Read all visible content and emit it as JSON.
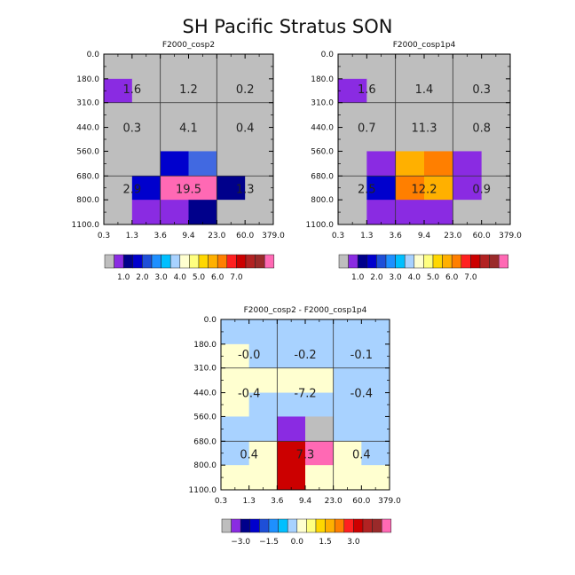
{
  "figure": {
    "title": "SH Pacific Stratus SON"
  },
  "chart_data": [
    {
      "type": "heatmap",
      "title": "F2000_cosp2",
      "x_tick_labels": [
        "0.3",
        "1.3",
        "3.6",
        "9.4",
        "23.0",
        "60.0",
        "379.0"
      ],
      "y_tick_labels": [
        "0.0",
        "180.0",
        "310.0",
        "440.0",
        "560.0",
        "680.0",
        "800.0",
        "1100.0"
      ],
      "cells": [
        [
          "gray",
          "gray",
          "gray",
          "gray",
          "gray",
          "gray"
        ],
        [
          "purple",
          "gray",
          "gray",
          "gray",
          "gray",
          "gray"
        ],
        [
          "gray",
          "gray",
          "gray",
          "gray",
          "gray",
          "gray"
        ],
        [
          "gray",
          "gray",
          "gray",
          "gray",
          "gray",
          "gray"
        ],
        [
          "gray",
          "gray",
          "blue3",
          "blue5",
          "gray",
          "gray"
        ],
        [
          "gray",
          "blue3",
          "pink",
          "pink",
          "navy",
          "gray"
        ],
        [
          "gray",
          "purple",
          "purple",
          "navy",
          "gray",
          "gray"
        ]
      ],
      "labels": [
        [
          "1.6",
          "1.2",
          "0.2"
        ],
        [
          "0.3",
          "4.1",
          "0.4"
        ],
        [
          "2.9",
          "19.5",
          "1.3"
        ]
      ],
      "colorbar": {
        "ticks": [
          "1.0",
          "2.0",
          "3.0",
          "4.0",
          "5.0",
          "6.0",
          "7.0"
        ]
      }
    },
    {
      "type": "heatmap",
      "title": "F2000_cosp1p4",
      "x_tick_labels": [
        "0.3",
        "1.3",
        "3.6",
        "9.4",
        "23.0",
        "60.0",
        "379.0"
      ],
      "y_tick_labels": [
        "0.0",
        "180.0",
        "310.0",
        "440.0",
        "560.0",
        "680.0",
        "800.0",
        "1100.0"
      ],
      "cells": [
        [
          "gray",
          "gray",
          "gray",
          "gray",
          "gray",
          "gray"
        ],
        [
          "purple",
          "gray",
          "gray",
          "gray",
          "gray",
          "gray"
        ],
        [
          "gray",
          "gray",
          "gray",
          "gray",
          "gray",
          "gray"
        ],
        [
          "gray",
          "gray",
          "gray",
          "gray",
          "gray",
          "gray"
        ],
        [
          "gray",
          "purple",
          "orange1",
          "orange2",
          "purple",
          "gray"
        ],
        [
          "gray",
          "blue3",
          "orange2",
          "orange1",
          "purple",
          "gray"
        ],
        [
          "gray",
          "purple",
          "purple",
          "purple",
          "gray",
          "gray"
        ]
      ],
      "labels": [
        [
          "1.6",
          "1.4",
          "0.3"
        ],
        [
          "0.7",
          "11.3",
          "0.8"
        ],
        [
          "2.5",
          "12.2",
          "0.9"
        ]
      ],
      "colorbar": {
        "ticks": [
          "1.0",
          "2.0",
          "3.0",
          "4.0",
          "5.0",
          "6.0",
          "7.0"
        ]
      }
    },
    {
      "type": "heatmap",
      "title": "F2000_cosp2 - F2000_cosp1p4",
      "x_tick_labels": [
        "0.3",
        "1.3",
        "3.6",
        "9.4",
        "23.0",
        "60.0",
        "379.0"
      ],
      "y_tick_labels": [
        "0.0",
        "180.0",
        "310.0",
        "440.0",
        "560.0",
        "680.0",
        "800.0",
        "1100.0"
      ],
      "cells": [
        [
          "lightblue",
          "lightblue",
          "lightblue",
          "lightblue",
          "lightblue",
          "lightblue"
        ],
        [
          "cream",
          "lightblue",
          "lightblue",
          "lightblue",
          "lightblue",
          "lightblue"
        ],
        [
          "cream",
          "cream",
          "cream",
          "cream",
          "lightblue",
          "lightblue"
        ],
        [
          "cream",
          "lightblue",
          "lightblue",
          "lightblue",
          "lightblue",
          "lightblue"
        ],
        [
          "lightblue",
          "lightblue",
          "purple",
          "gray",
          "lightblue",
          "lightblue"
        ],
        [
          "lightblue",
          "cream",
          "red",
          "pink",
          "cream",
          "lightblue"
        ],
        [
          "cream",
          "cream",
          "red",
          "cream",
          "cream",
          "cream"
        ]
      ],
      "labels": [
        [
          "-0.0",
          "-0.2",
          "-0.1"
        ],
        [
          "-0.4",
          "-7.2",
          "-0.4"
        ],
        [
          "0.4",
          "7.3",
          "0.4"
        ]
      ],
      "colorbar": {
        "ticks": [
          "−3.0",
          "−1.5",
          "0.0",
          "1.5",
          "3.0"
        ]
      }
    }
  ],
  "palette": {
    "gray": "#bebebe",
    "purple": "#8a2be2",
    "navy": "#00008b",
    "blue3": "#0000cd",
    "blue4": "#1e4fd8",
    "blue5": "#4169e1",
    "dodger": "#1e90ff",
    "deepsky": "#00bfff",
    "lightblue": "#a8d2ff",
    "cream": "#ffffd0",
    "yellow1": "#ffff80",
    "gold": "#ffd700",
    "orange1": "#ffb000",
    "orange2": "#ff7f00",
    "red": "#cc0000",
    "red2": "#ff2020",
    "darkred": "#b22222",
    "brown": "#9a2a2a",
    "pink": "#ff69b4"
  },
  "colorbar_swatches": {
    "top": [
      "gray",
      "purple",
      "navy",
      "blue3",
      "blue4",
      "dodger",
      "deepsky",
      "lightblue",
      "cream",
      "yellow1",
      "gold",
      "orange1",
      "orange2",
      "red2",
      "red",
      "darkred",
      "brown",
      "pink"
    ],
    "bottom": [
      "gray",
      "purple",
      "navy",
      "blue3",
      "blue4",
      "dodger",
      "deepsky",
      "lightblue",
      "cream",
      "yellow1",
      "gold",
      "orange1",
      "orange2",
      "red2",
      "red",
      "darkred",
      "brown",
      "pink"
    ]
  }
}
